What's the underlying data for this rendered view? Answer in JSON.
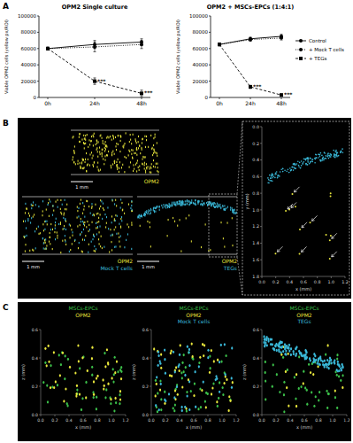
{
  "chart_data": [
    {
      "type": "line",
      "title": "OPM2 Single culture",
      "y_label": "Viable OPM2 cells (yellow px/ROI)",
      "categories": [
        "0h",
        "24h",
        "48h"
      ],
      "series": [
        {
          "name": "Control",
          "color": "#000000",
          "marker": "circle",
          "line_style": "solid",
          "values": [
            60000,
            65000,
            68000
          ],
          "errors": [
            1500,
            5000,
            4000
          ]
        },
        {
          "name": "+ Mock T cells",
          "color": "#000000",
          "marker": "circle",
          "line_style": "dotted",
          "values": [
            60000,
            62000,
            65000
          ],
          "errors": [
            1500,
            6000,
            5000
          ]
        },
        {
          "name": "+ TEGs",
          "color": "#000000",
          "marker": "square",
          "line_style": "dashed",
          "values": [
            60000,
            20000,
            5000
          ],
          "errors": [
            1500,
            4000,
            4000
          ]
        }
      ],
      "annotations": [
        {
          "text": "***",
          "category": "24h"
        },
        {
          "text": "***",
          "category": "48h"
        }
      ],
      "ylim": [
        0,
        100000
      ],
      "yticks": [
        0,
        20000,
        40000,
        60000,
        80000,
        100000
      ],
      "grid": false
    },
    {
      "type": "line",
      "title": "OPM2 + MSCs-EPCs (1:4:1)",
      "y_label": "Viable OPM2 cells (yellow px/ROI)",
      "categories": [
        "0h",
        "24h",
        "48h"
      ],
      "series": [
        {
          "name": "Control",
          "color": "#000000",
          "marker": "circle",
          "line_style": "solid",
          "values": [
            65000,
            72000,
            75000
          ],
          "errors": [
            1500,
            2000,
            2500
          ]
        },
        {
          "name": "+ Mock T cells",
          "color": "#000000",
          "marker": "circle",
          "line_style": "dotted",
          "values": [
            65000,
            71000,
            73000
          ],
          "errors": [
            1500,
            2000,
            2500
          ]
        },
        {
          "name": "+ TEGs",
          "color": "#000000",
          "marker": "square",
          "line_style": "dashed",
          "values": [
            65000,
            13000,
            3000
          ],
          "errors": [
            1500,
            2000,
            1500
          ]
        }
      ],
      "annotations": [
        {
          "text": "***",
          "category": "24h"
        },
        {
          "text": "***",
          "category": "48h"
        }
      ],
      "ylim": [
        0,
        100000
      ],
      "yticks": [
        0,
        20000,
        40000,
        60000,
        80000,
        100000
      ],
      "grid": false,
      "legend": "right"
    }
  ],
  "panel_labels": [
    "A",
    "B",
    "C"
  ],
  "panel_b": {
    "images": [
      {
        "labels": [
          {
            "text": "OPM2",
            "color": "#e8e63c"
          }
        ],
        "scale_bar": "1 mm"
      },
      {
        "labels": [
          {
            "text": "OPM2",
            "color": "#e8e63c"
          },
          {
            "text": "Mock T cells",
            "color": "#3ab8d8"
          }
        ],
        "scale_bar": "1 mm"
      },
      {
        "labels": [
          {
            "text": "OPM2",
            "color": "#e8e63c"
          },
          {
            "text": "TEGs",
            "color": "#3ab8d8"
          }
        ],
        "scale_bar": "1 mm"
      }
    ],
    "inset": {
      "x_label": "x (mm)",
      "y_label": "y (mm)",
      "xlim": [
        0,
        1.2
      ],
      "ylim": [
        0,
        1.8
      ],
      "xticks": [
        {
          "value": 0,
          "label": "0.0"
        },
        {
          "value": 0.2,
          "label": "0.2"
        },
        {
          "value": 0.4,
          "label": "0.4"
        },
        {
          "value": 0.6,
          "label": "0.6"
        },
        {
          "value": 0.8,
          "label": "0.8"
        },
        {
          "value": 1,
          "label": "1.0"
        },
        {
          "value": 1.2,
          "label": "1.2"
        }
      ],
      "yticks": [
        {
          "value": 0,
          "label": "0.0"
        },
        {
          "value": 0.2,
          "label": "0.2"
        },
        {
          "value": 0.4,
          "label": "0.4"
        },
        {
          "value": 0.6,
          "label": "0.6"
        },
        {
          "value": 0.8,
          "label": "0.8"
        },
        {
          "value": 1,
          "label": "1.0"
        },
        {
          "value": 1.2,
          "label": "1.2"
        },
        {
          "value": 1.4,
          "label": "1.4"
        },
        {
          "value": 1.6,
          "label": "1.6"
        },
        {
          "value": 1.8,
          "label": "1.8"
        }
      ]
    }
  },
  "panel_c": {
    "x_label": "x (mm)",
    "y_label": "z (mm)",
    "xlim": [
      0,
      1.2
    ],
    "ylim": [
      0,
      0.6
    ],
    "xticks": [
      {
        "value": 0,
        "label": "0.0"
      },
      {
        "value": 0.2,
        "label": "0.2"
      },
      {
        "value": 0.4,
        "label": "0.4"
      },
      {
        "value": 0.6,
        "label": "0.6"
      },
      {
        "value": 0.8,
        "label": "0.8"
      },
      {
        "value": 1,
        "label": "1.0"
      },
      {
        "value": 1.2,
        "label": "1.2"
      }
    ],
    "yticks": [
      {
        "value": 0,
        "label": "0.0"
      },
      {
        "value": 0.2,
        "label": "0.2"
      },
      {
        "value": 0.4,
        "label": "0.4"
      },
      {
        "value": 0.6,
        "label": "0.6"
      }
    ],
    "plots": [
      {
        "labels": [
          {
            "text": "MSCs-EPCs",
            "color": "#3cc04a"
          },
          {
            "text": "OPM2",
            "color": "#e8e63c"
          }
        ]
      },
      {
        "labels": [
          {
            "text": "MSCs-EPCs",
            "color": "#3cc04a"
          },
          {
            "text": "OPM2",
            "color": "#e8e63c"
          },
          {
            "text": "Mock T cells",
            "color": "#3ab8d8"
          }
        ]
      },
      {
        "labels": [
          {
            "text": "MSCs-EPCs",
            "color": "#3cc04a"
          },
          {
            "text": "OPM2",
            "color": "#e8e63c"
          },
          {
            "text": "TEGs",
            "color": "#3ab8d8"
          }
        ]
      }
    ]
  }
}
